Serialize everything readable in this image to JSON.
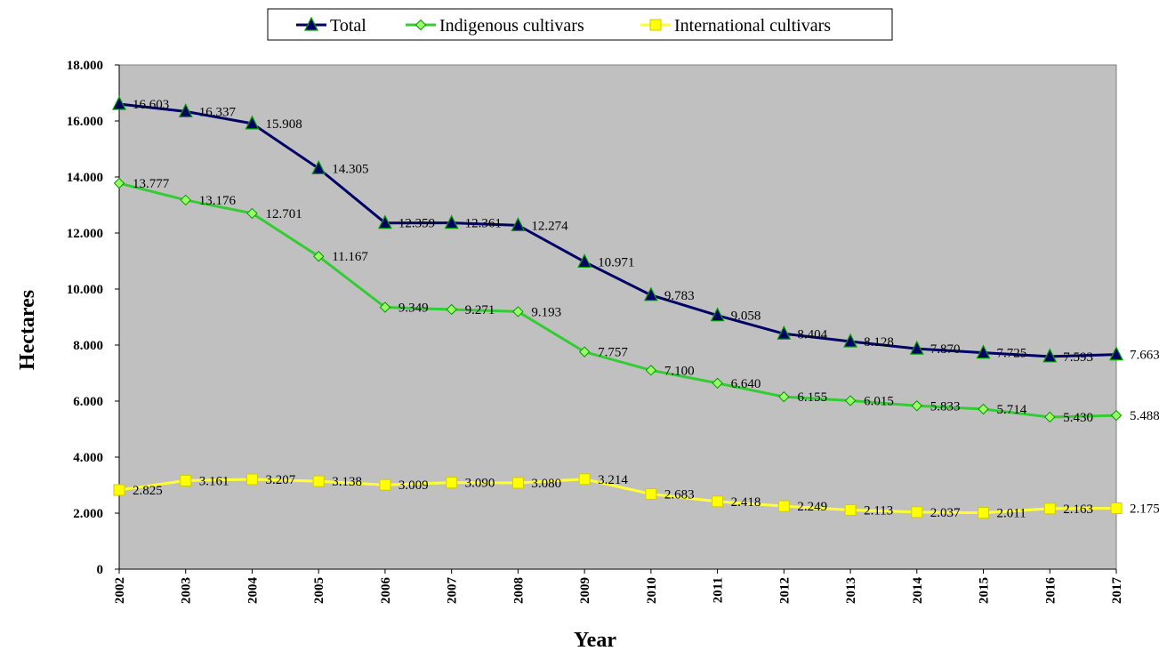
{
  "chart_data": {
    "type": "line",
    "x": [
      "2002",
      "2003",
      "2004",
      "2005",
      "2006",
      "2007",
      "2008",
      "2009",
      "2010",
      "2011",
      "2012",
      "2013",
      "2014",
      "2015",
      "2016",
      "2017"
    ],
    "xlabel": "Year",
    "ylabel": "Hectares",
    "ylim": [
      0,
      18000
    ],
    "yticks": [
      0,
      2000,
      4000,
      6000,
      8000,
      10000,
      12000,
      14000,
      16000,
      18000
    ],
    "ytick_labels": [
      "0",
      "2.000",
      "4.000",
      "6.000",
      "8.000",
      "10.000",
      "12.000",
      "14.000",
      "16.000",
      "18.000"
    ],
    "grid": false,
    "legend_position": "top-center",
    "plot_background": "#C0C0C0",
    "series": [
      {
        "name": "Total",
        "color": "#000066",
        "marker": "triangle",
        "marker_fill": "#000066",
        "marker_edge": "#00A000",
        "values": [
          16603,
          16337,
          15908,
          14305,
          12359,
          12361,
          12274,
          10971,
          9783,
          9058,
          8404,
          8128,
          7870,
          7725,
          7593,
          7663
        ],
        "labels": [
          "16.603",
          "16.337",
          "15.908",
          "14.305",
          "12.359",
          "12.361",
          "12.274",
          "10.971",
          "9.783",
          "9.058",
          "8.404",
          "8.128",
          "7.870",
          "7.725",
          "7.593",
          "7.663"
        ]
      },
      {
        "name": "Indigenous cultivars",
        "color": "#33CC33",
        "marker": "diamond",
        "marker_fill": "#99FF66",
        "marker_edge": "#009900",
        "values": [
          13777,
          13176,
          12701,
          11167,
          9349,
          9271,
          9193,
          7757,
          7100,
          6640,
          6155,
          6015,
          5833,
          5714,
          5430,
          5488
        ],
        "labels": [
          "13.777",
          "13.176",
          "12.701",
          "11.167",
          "9.349",
          "9.271",
          "9.193",
          "7.757",
          "7.100",
          "6.640",
          "6.155",
          "6.015",
          "5.833",
          "5.714",
          "5.430",
          "5.488"
        ]
      },
      {
        "name": "International cultivars",
        "color": "#FFFF33",
        "marker": "square",
        "marker_fill": "#FFFF00",
        "marker_edge": "#CCCC00",
        "values": [
          2825,
          3161,
          3207,
          3138,
          3009,
          3090,
          3080,
          3214,
          2683,
          2418,
          2249,
          2113,
          2037,
          2011,
          2163,
          2175
        ],
        "labels": [
          "2.825",
          "3.161",
          "3.207",
          "3.138",
          "3.009",
          "3.090",
          "3.080",
          "3.214",
          "2.683",
          "2.418",
          "2.249",
          "2.113",
          "2.037",
          "2.011",
          "2.163",
          "2.175"
        ]
      }
    ]
  }
}
